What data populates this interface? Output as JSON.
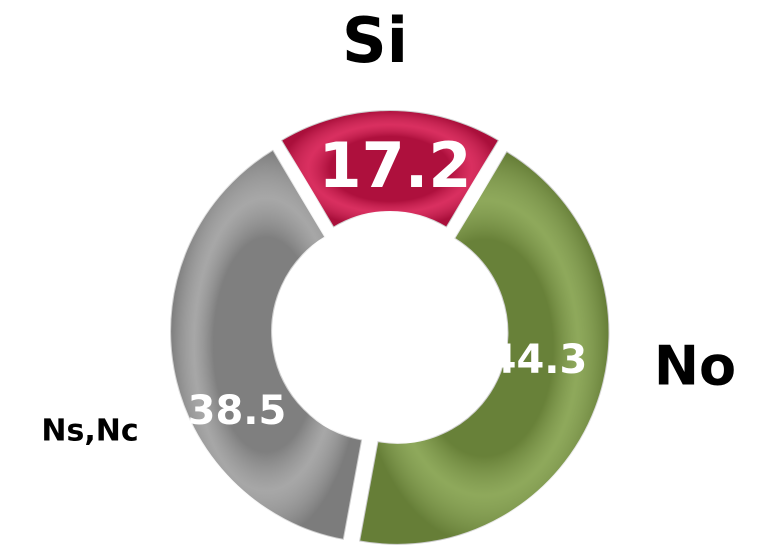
{
  "chart_data": {
    "type": "pie",
    "donut": true,
    "categories": [
      "Si",
      "No",
      "Ns,Nc"
    ],
    "values": [
      17.2,
      44.3,
      38.5
    ],
    "colors": [
      "#d4134a",
      "#7f9d45",
      "#9b9b9b"
    ]
  }
}
